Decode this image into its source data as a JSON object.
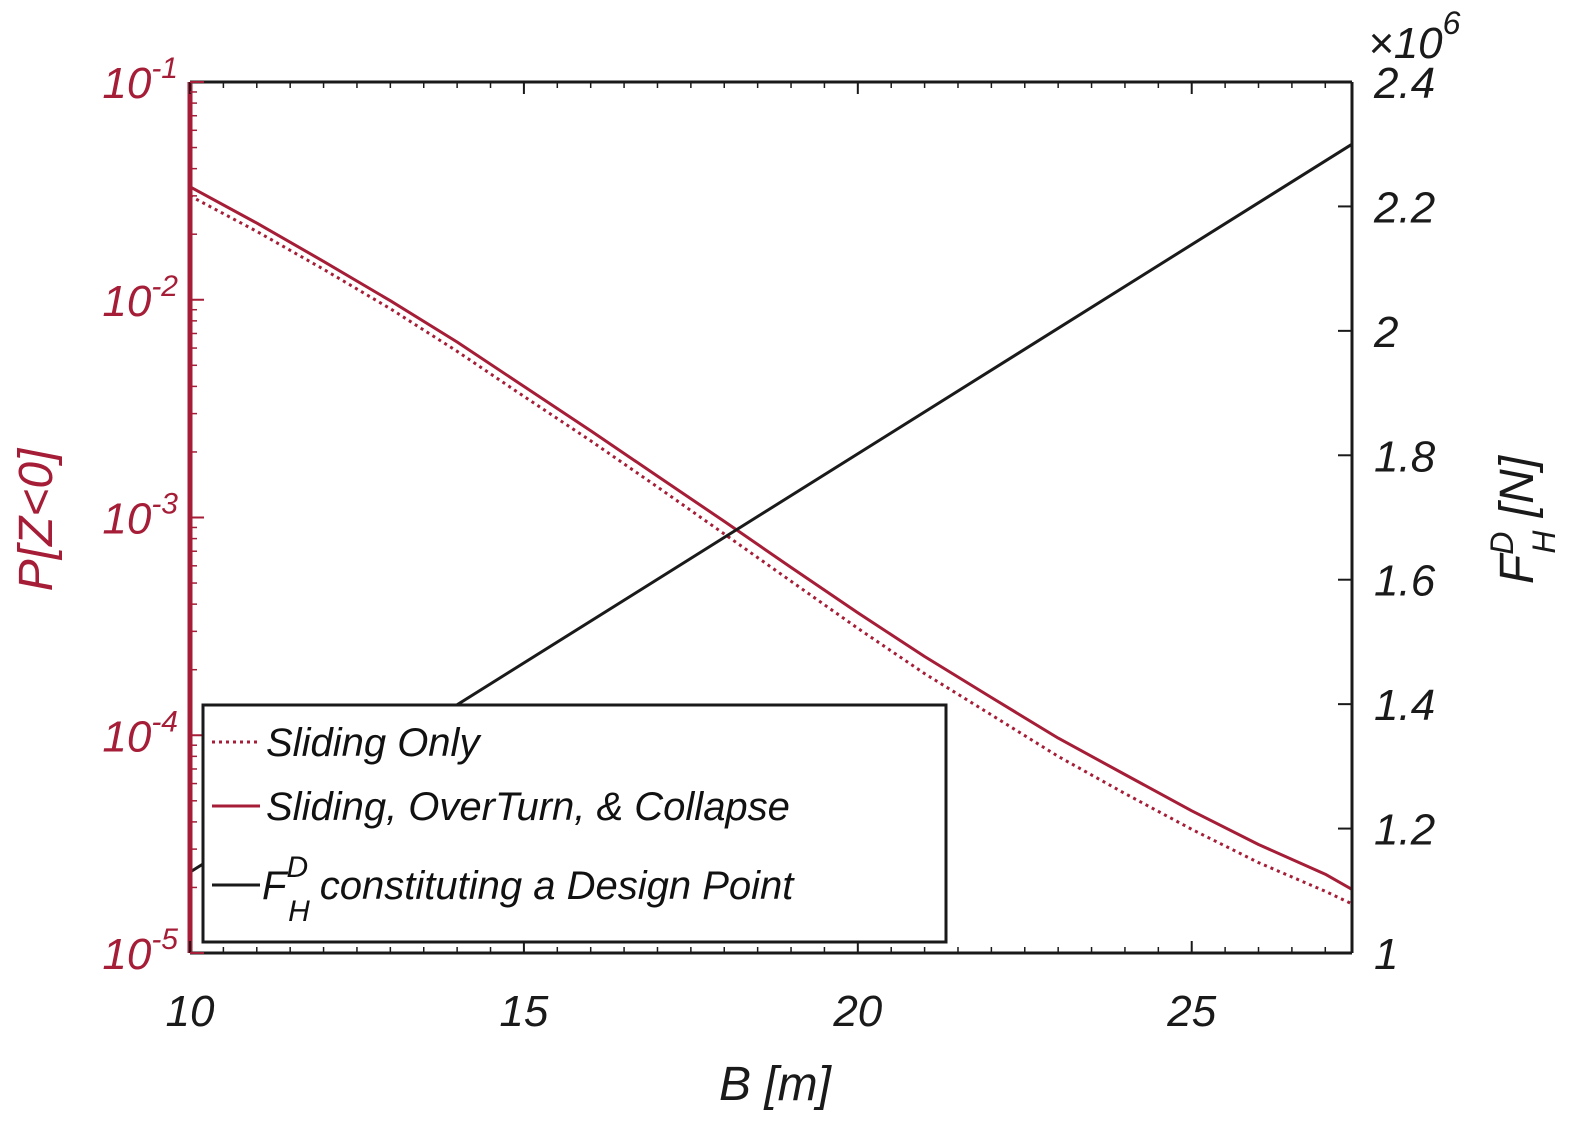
{
  "chart_data": {
    "type": "line",
    "xlabel": "B [m]",
    "ylabel_left": "P[Z<0]",
    "ylabel_right": {
      "base": "F",
      "sup": "D",
      "sub": "H",
      "unit": " [N]"
    },
    "xlim": [
      10,
      27.4
    ],
    "xticks": [
      {
        "value": 10,
        "label": "10"
      },
      {
        "value": 15,
        "label": "15"
      },
      {
        "value": 20,
        "label": "20"
      },
      {
        "value": 25,
        "label": "25"
      }
    ],
    "y_left": {
      "scale": "log",
      "lim": [
        1e-05,
        0.1
      ],
      "ticks": [
        {
          "value": 0.1,
          "base": "10",
          "exp": "-1"
        },
        {
          "value": 0.01,
          "base": "10",
          "exp": "-2"
        },
        {
          "value": 0.001,
          "base": "10",
          "exp": "-3"
        },
        {
          "value": 0.0001,
          "base": "10",
          "exp": "-4"
        },
        {
          "value": 1e-05,
          "base": "10",
          "exp": "-5"
        }
      ],
      "color": "#a51d36"
    },
    "y_right": {
      "scale": "linear",
      "lim": [
        1.0,
        2.4
      ],
      "multiplier": {
        "base": "×10",
        "exp": "6"
      },
      "ticks": [
        {
          "value": 1.0,
          "label": "1"
        },
        {
          "value": 1.2,
          "label": "1.2"
        },
        {
          "value": 1.4,
          "label": "1.4"
        },
        {
          "value": 1.6,
          "label": "1.6"
        },
        {
          "value": 1.8,
          "label": "1.8"
        },
        {
          "value": 2.0,
          "label": "2"
        },
        {
          "value": 2.2,
          "label": "2.2"
        },
        {
          "value": 2.4,
          "label": "2.4"
        }
      ],
      "color": "#1a1a1a"
    },
    "series": [
      {
        "name": "Sliding Only",
        "axis": "left",
        "style": "dotted",
        "color": "#a51d36",
        "x": [
          10,
          11,
          12,
          13,
          14,
          15,
          16,
          17,
          18,
          19,
          20,
          21,
          22,
          23,
          24,
          25,
          26,
          27,
          27.4
        ],
        "y": [
          0.03,
          0.0206,
          0.0138,
          0.0091,
          0.0058,
          0.0036,
          0.00225,
          0.00138,
          0.00084,
          0.00051,
          0.00031,
          0.000192,
          0.000124,
          8e-05,
          5.4e-05,
          3.7e-05,
          2.6e-05,
          1.92e-05,
          1.68e-05
        ]
      },
      {
        "name": "Sliding, OverTurn, & Collapse",
        "axis": "left",
        "style": "solid",
        "color": "#a51d36",
        "x": [
          10,
          11,
          12,
          13,
          14,
          15,
          16,
          17,
          18,
          19,
          20,
          21,
          22,
          23,
          24,
          25,
          26,
          27,
          27.4
        ],
        "y": [
          0.033,
          0.0225,
          0.015,
          0.0099,
          0.0064,
          0.004,
          0.0025,
          0.00155,
          0.00096,
          0.00059,
          0.000365,
          0.00023,
          0.000149,
          9.7e-05,
          6.6e-05,
          4.5e-05,
          3.15e-05,
          2.3e-05,
          1.96e-05
        ]
      },
      {
        "name": "constituting a Design Point",
        "name_prefix": {
          "base": "F",
          "sup": "D",
          "sub": "H"
        },
        "axis": "right",
        "style": "solid",
        "color": "#1a1a1a",
        "x": [
          10,
          27.4
        ],
        "y": [
          1.13,
          2.3
        ]
      }
    ],
    "legend_position": "bottom-left",
    "grid": false
  }
}
